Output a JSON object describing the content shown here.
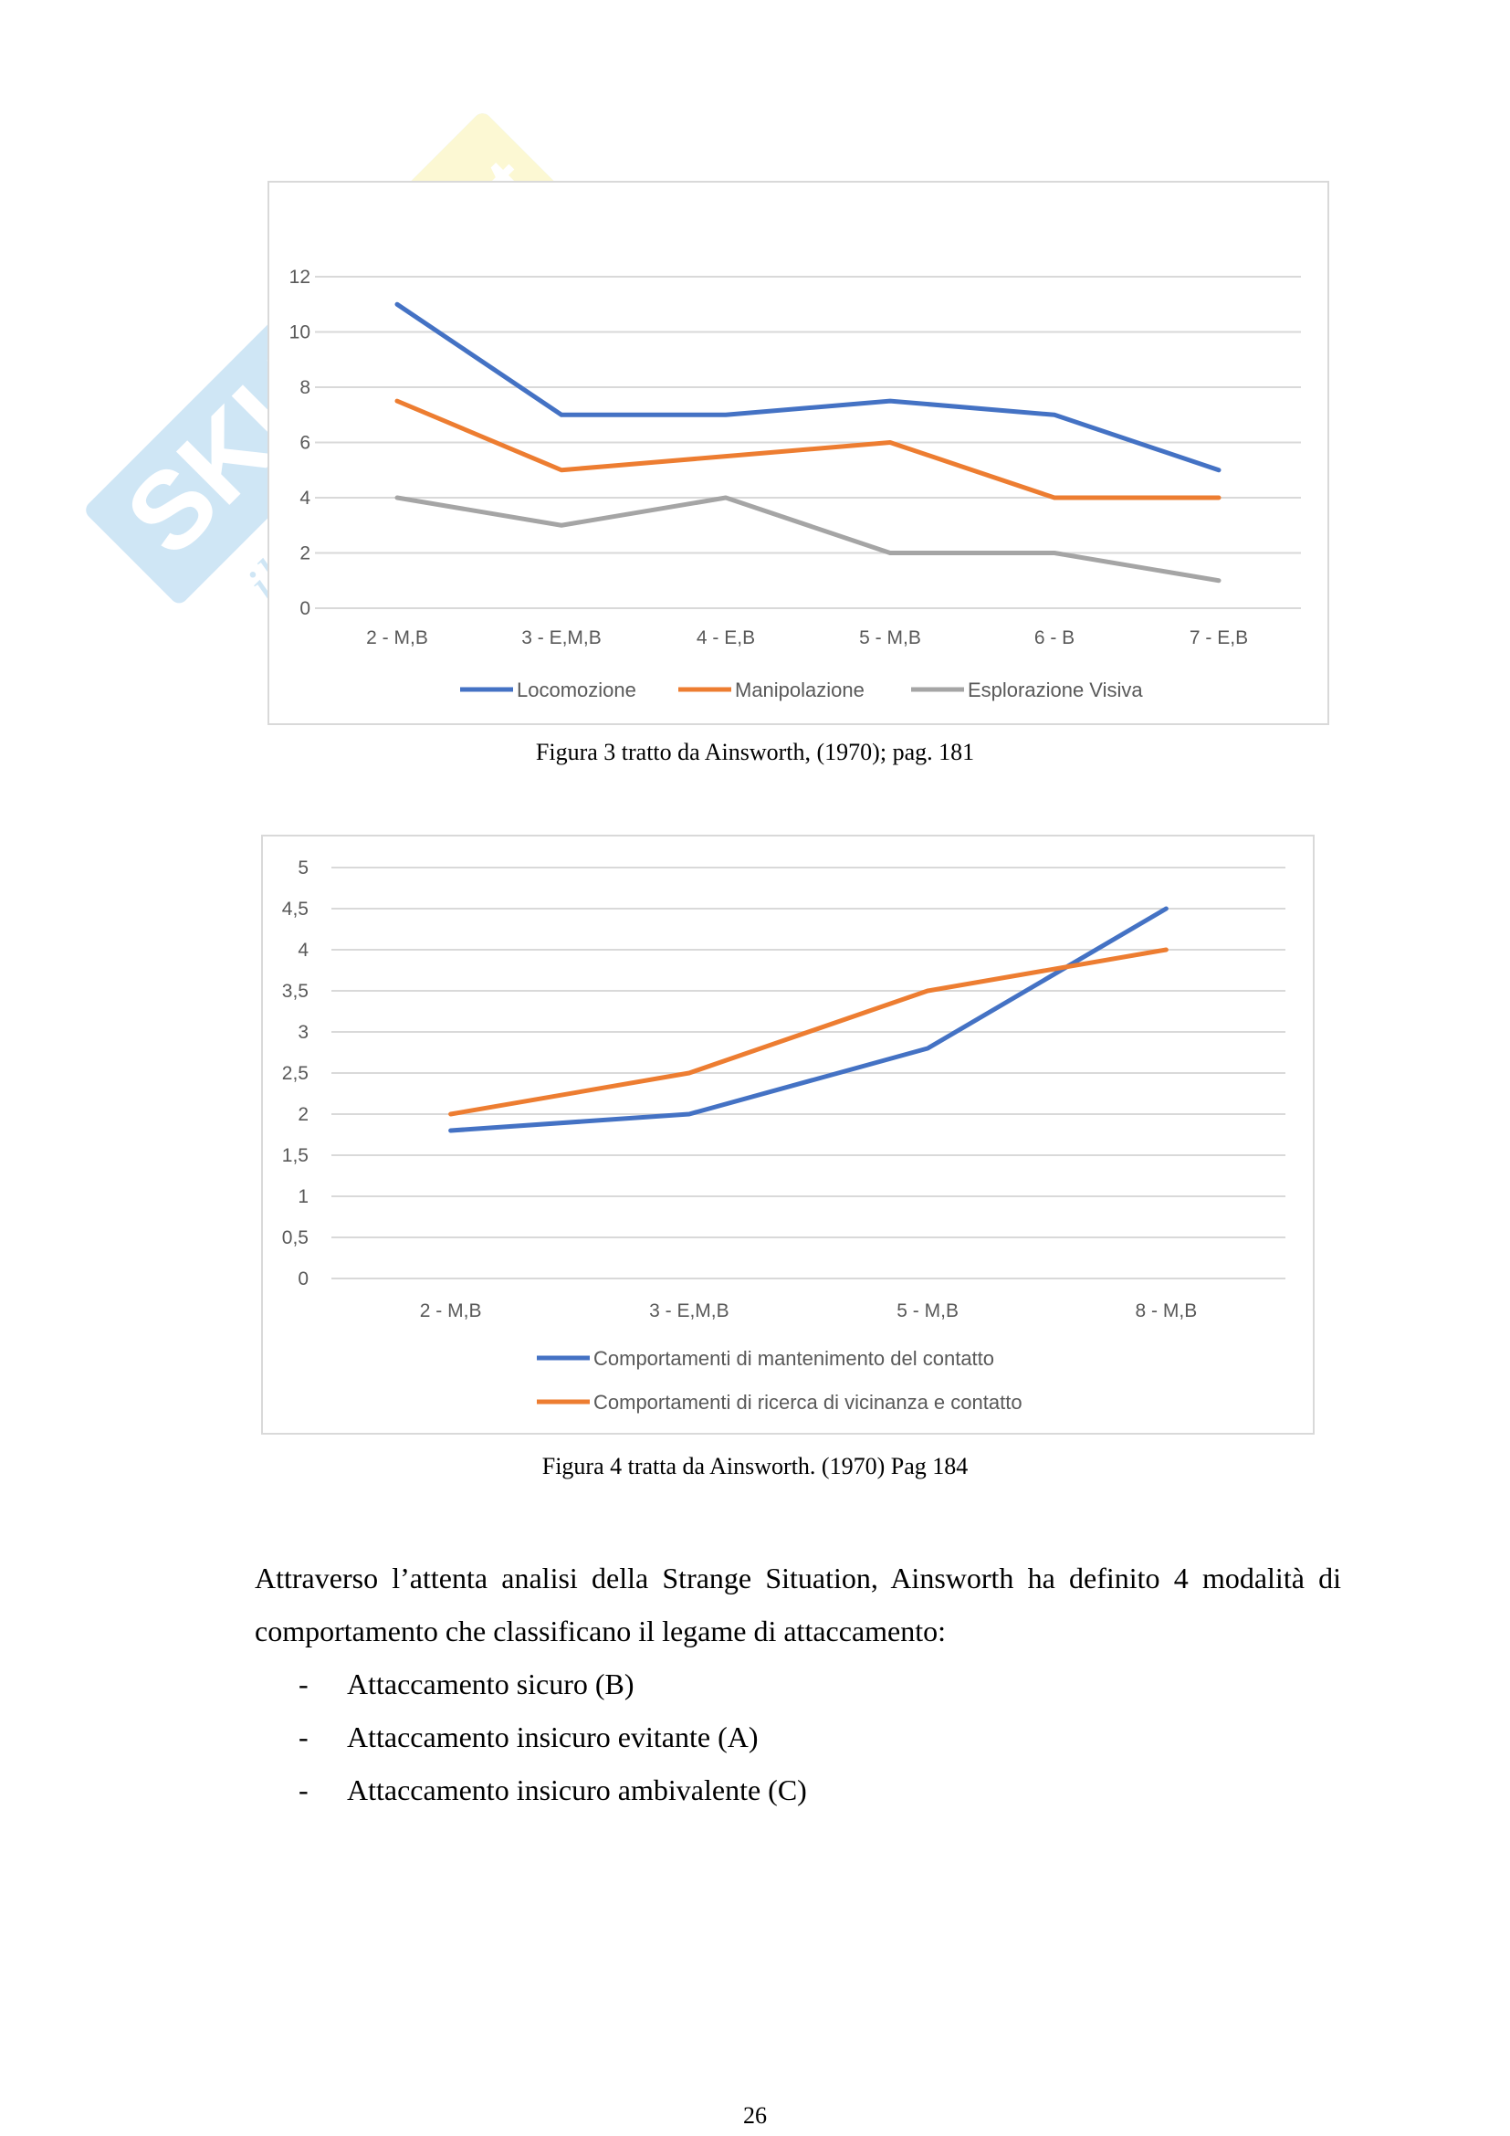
{
  "watermark": {
    "brand": "SKUOLA.net",
    "tagline": "il paradiso dello studente"
  },
  "figures": [
    {
      "caption": "Figura 3 tratto da Ainsworth, (1970); pag. 181",
      "chart_data": {
        "type": "line",
        "title": "",
        "xlabel": "",
        "ylabel": "",
        "categories": [
          "2 - M,B",
          "3 - E,M,B",
          "4 - E,B",
          "5 - M,B",
          "6 - B",
          "7 - E,B"
        ],
        "ylim": [
          0,
          12
        ],
        "yticks": [
          "0",
          "2",
          "4",
          "6",
          "8",
          "10",
          "12"
        ],
        "ytick_values": [
          0,
          2,
          4,
          6,
          8,
          10,
          12
        ],
        "grid": true,
        "legend_position": "bottom",
        "series": [
          {
            "name": "Locomozione",
            "color": "#4472c4",
            "values": [
              11,
              7,
              7,
              7.5,
              7,
              5
            ]
          },
          {
            "name": "Manipolazione",
            "color": "#ed7d31",
            "values": [
              7.5,
              5,
              5.5,
              6,
              4,
              4
            ]
          },
          {
            "name": "Esplorazione Visiva",
            "color": "#a5a5a5",
            "values": [
              4,
              3,
              4,
              2,
              2,
              1
            ]
          }
        ]
      }
    },
    {
      "caption": "Figura 4 tratta da Ainsworth. (1970) Pag 184",
      "chart_data": {
        "type": "line",
        "title": "",
        "xlabel": "",
        "ylabel": "",
        "categories": [
          "2 - M,B",
          "3 - E,M,B",
          "5 - M,B",
          "8 - M,B"
        ],
        "ylim": [
          0,
          5
        ],
        "yticks": [
          "0",
          "0,5",
          "1",
          "1,5",
          "2",
          "2,5",
          "3",
          "3,5",
          "4",
          "4,5",
          "5"
        ],
        "ytick_values": [
          0,
          0.5,
          1,
          1.5,
          2,
          2.5,
          3,
          3.5,
          4,
          4.5,
          5
        ],
        "grid": true,
        "legend_position": "bottom",
        "series": [
          {
            "name": "Comportamenti di mantenimento del contatto",
            "color": "#4472c4",
            "values": [
              1.8,
              2,
              2.8,
              4.5
            ]
          },
          {
            "name": "Comportamenti di ricerca di vicinanza e contatto",
            "color": "#ed7d31",
            "values": [
              2,
              2.5,
              3.5,
              4
            ]
          }
        ]
      }
    }
  ],
  "paragraph": "Attraverso l’attenta analisi della Strange Situation, Ainsworth ha definito 4 modalità di comportamento che classificano il legame di attaccamento:",
  "list": [
    {
      "bullet": "-",
      "text": "Attaccamento sicuro (B)"
    },
    {
      "bullet": "-",
      "text": "Attaccamento insicuro evitante (A)"
    },
    {
      "bullet": "-",
      "text": "Attaccamento insicuro ambivalente (C)"
    }
  ],
  "page_number": "26"
}
